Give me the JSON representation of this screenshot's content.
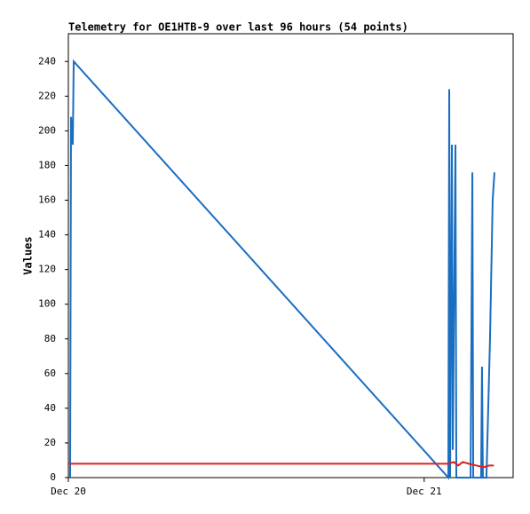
{
  "chart_data": {
    "type": "line",
    "title": "Telemetry for OE1HTB-9 over last 96 hours (54 points)",
    "ylabel": "Values",
    "xlim": [
      0,
      30
    ],
    "xticks": [
      {
        "value": 0,
        "label": "Dec 20"
      },
      {
        "value": 24,
        "label": "Dec 21"
      }
    ],
    "ylim": [
      0,
      256
    ],
    "yticks": [
      0,
      20,
      40,
      60,
      80,
      100,
      120,
      140,
      160,
      180,
      200,
      220,
      240
    ],
    "grid": false,
    "series": [
      {
        "color": "#1a6ec0",
        "x": [
          0.12,
          0.18,
          0.3,
          0.36,
          25.63,
          25.69,
          25.75,
          25.87,
          25.93,
          26.11,
          26.17,
          27.13,
          27.19,
          27.25,
          27.31,
          27.84,
          27.9,
          27.96,
          28.2,
          28.44,
          28.62,
          28.74
        ],
        "values": [
          0,
          208,
          192,
          240,
          0,
          224,
          0,
          192,
          16,
          192,
          0,
          0,
          88,
          176,
          0,
          0,
          64,
          0,
          0,
          80,
          160,
          176
        ]
      },
      {
        "color": "#e02020",
        "x": [
          0,
          25.6,
          26.0,
          26.3,
          26.6,
          27.0,
          27.5,
          28.0,
          28.4,
          28.7
        ],
        "values": [
          8,
          8,
          9,
          7,
          9,
          8,
          7,
          6,
          7,
          7
        ]
      }
    ]
  }
}
